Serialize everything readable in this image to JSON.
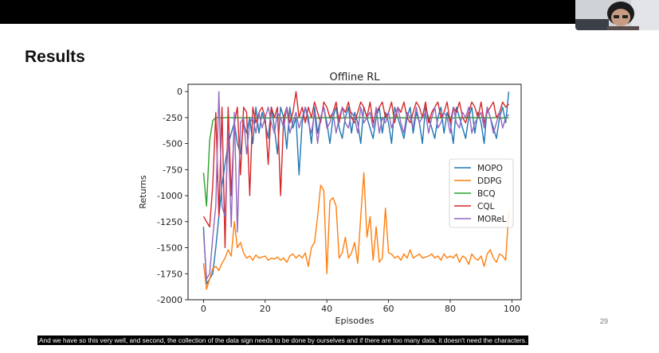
{
  "slide": {
    "title": "Results",
    "page_number": "29",
    "caption": "And we have so this very well, and second, the collection of the data sign needs to be done by ourselves and if there are too many data, it doesn't need the characters."
  },
  "chart_data": {
    "type": "line",
    "title": "Offline RL",
    "xlabel": "Episodes",
    "ylabel": "Returns",
    "xlim": [
      -5,
      103
    ],
    "ylim": [
      -2000,
      70
    ],
    "xticks": [
      0,
      20,
      40,
      60,
      80,
      100
    ],
    "yticks": [
      0,
      -250,
      -500,
      -750,
      -1000,
      -1250,
      -1500,
      -1750,
      -2000
    ],
    "grid": false,
    "legend_position": "center-right",
    "series": [
      {
        "name": "MOPO",
        "color": "#1f77b4",
        "x": [
          0,
          1,
          2,
          3,
          4,
          5,
          6,
          7,
          8,
          9,
          10,
          11,
          12,
          13,
          14,
          15,
          16,
          17,
          18,
          19,
          20,
          21,
          22,
          23,
          24,
          25,
          26,
          27,
          28,
          29,
          30,
          31,
          32,
          33,
          34,
          35,
          36,
          37,
          38,
          39,
          40,
          41,
          42,
          43,
          44,
          45,
          46,
          47,
          48,
          49,
          50,
          51,
          52,
          53,
          54,
          55,
          56,
          57,
          58,
          59,
          60,
          61,
          62,
          63,
          64,
          65,
          66,
          67,
          68,
          69,
          70,
          71,
          72,
          73,
          74,
          75,
          76,
          77,
          78,
          79,
          80,
          81,
          82,
          83,
          84,
          85,
          86,
          87,
          88,
          89,
          90,
          91,
          92,
          93,
          94,
          95,
          96,
          97,
          98,
          99
        ],
        "values": [
          -1300,
          -1850,
          -1800,
          -1750,
          -1500,
          -1200,
          -900,
          -700,
          -500,
          -400,
          -300,
          -500,
          -600,
          -300,
          -400,
          -250,
          -500,
          -150,
          -400,
          -200,
          -300,
          -450,
          -150,
          -350,
          -600,
          -150,
          -250,
          -550,
          -150,
          -350,
          -250,
          -800,
          -300,
          -150,
          -250,
          -500,
          -150,
          -400,
          -250,
          -150,
          -300,
          -500,
          -250,
          -150,
          -350,
          -450,
          -250,
          -150,
          -400,
          -200,
          -300,
          -500,
          -150,
          -250,
          -350,
          -450,
          -250,
          -150,
          -400,
          -200,
          -300,
          -500,
          -150,
          -250,
          -350,
          -450,
          -250,
          -150,
          -400,
          -200,
          -300,
          -500,
          -150,
          -250,
          -350,
          -450,
          -250,
          -150,
          -400,
          -200,
          -300,
          -500,
          -150,
          -250,
          -350,
          -450,
          -250,
          -150,
          -400,
          -200,
          -300,
          -500,
          -150,
          -250,
          -350,
          -450,
          -250,
          -150,
          -300,
          0
        ]
      },
      {
        "name": "DDPG",
        "color": "#ff7f0e",
        "x": [
          0,
          1,
          2,
          3,
          4,
          5,
          6,
          7,
          8,
          9,
          10,
          11,
          12,
          13,
          14,
          15,
          16,
          17,
          18,
          19,
          20,
          21,
          22,
          23,
          24,
          25,
          26,
          27,
          28,
          29,
          30,
          31,
          32,
          33,
          34,
          35,
          36,
          37,
          38,
          39,
          40,
          41,
          42,
          43,
          44,
          45,
          46,
          47,
          48,
          49,
          50,
          51,
          52,
          53,
          54,
          55,
          56,
          57,
          58,
          59,
          60,
          61,
          62,
          63,
          64,
          65,
          66,
          67,
          68,
          69,
          70,
          71,
          72,
          73,
          74,
          75,
          76,
          77,
          78,
          79,
          80,
          81,
          82,
          83,
          84,
          85,
          86,
          87,
          88,
          89,
          90,
          91,
          92,
          93,
          94,
          95,
          96,
          97,
          98,
          99
        ],
        "values": [
          -1650,
          -1900,
          -1800,
          -1700,
          -1680,
          -1720,
          -1650,
          -1600,
          -1520,
          -1580,
          -1250,
          -1500,
          -1450,
          -1550,
          -1600,
          -1580,
          -1620,
          -1570,
          -1600,
          -1590,
          -1580,
          -1620,
          -1600,
          -1610,
          -1590,
          -1620,
          -1600,
          -1640,
          -1580,
          -1560,
          -1600,
          -1570,
          -1600,
          -1550,
          -1680,
          -1500,
          -1450,
          -1200,
          -900,
          -950,
          -1750,
          -1050,
          -1020,
          -1100,
          -1600,
          -1550,
          -1400,
          -1600,
          -1550,
          -1450,
          -1650,
          -1200,
          -780,
          -1400,
          -1200,
          -1620,
          -1300,
          -1640,
          -1600,
          -1120,
          -1550,
          -1560,
          -1600,
          -1580,
          -1620,
          -1560,
          -1600,
          -1520,
          -1600,
          -1580,
          -1560,
          -1600,
          -1590,
          -1580,
          -1560,
          -1600,
          -1580,
          -1620,
          -1560,
          -1600,
          -1580,
          -1600,
          -1560,
          -1640,
          -1580,
          -1600,
          -1660,
          -1560,
          -1600,
          -1620,
          -1580,
          -1680,
          -1560,
          -1520,
          -1600,
          -1640,
          -1560,
          -1580,
          -1620,
          -1150
        ]
      },
      {
        "name": "BCQ",
        "color": "#2ca02c",
        "x": [
          0,
          1,
          2,
          3,
          4,
          5,
          6,
          7,
          8,
          9,
          10,
          11,
          12,
          13,
          14,
          15,
          16,
          17,
          18,
          19,
          20,
          21,
          22,
          23,
          24,
          25,
          26,
          27,
          28,
          29,
          30,
          31,
          32,
          33,
          34,
          35,
          36,
          37,
          38,
          39,
          40,
          41,
          42,
          43,
          44,
          45,
          46,
          47,
          48,
          49,
          50,
          51,
          52,
          53,
          54,
          55,
          56,
          57,
          58,
          59,
          60,
          61,
          62,
          63,
          64,
          65,
          66,
          67,
          68,
          69,
          70,
          71,
          72,
          73,
          74,
          75,
          76,
          77,
          78,
          79,
          80,
          81,
          82,
          83,
          84,
          85,
          86,
          87,
          88,
          89,
          90,
          91,
          92,
          93,
          94,
          95,
          96,
          97,
          98,
          99
        ],
        "values": [
          -780,
          -1100,
          -470,
          -280,
          -250,
          -250,
          -255,
          -250,
          -250,
          -250,
          -255,
          -250,
          -250,
          -255,
          -250,
          -250,
          -250,
          -255,
          -250,
          -250,
          -250,
          -255,
          -250,
          -250,
          -250,
          -255,
          -250,
          -250,
          -250,
          -255,
          -250,
          -250,
          -250,
          -255,
          -250,
          -250,
          -250,
          -255,
          -250,
          -250,
          -250,
          -255,
          -250,
          -250,
          -250,
          -255,
          -250,
          -250,
          -250,
          -255,
          -250,
          -250,
          -250,
          -255,
          -250,
          -250,
          -250,
          -255,
          -250,
          -250,
          -250,
          -255,
          -250,
          -250,
          -250,
          -255,
          -250,
          -250,
          -250,
          -255,
          -250,
          -250,
          -250,
          -255,
          -250,
          -250,
          -250,
          -255,
          -250,
          -250,
          -250,
          -255,
          -250,
          -250,
          -250,
          -255,
          -250,
          -250,
          -250,
          -255,
          -250,
          -250,
          -250,
          -255,
          -250,
          -250,
          -250,
          -255,
          -250,
          -250
        ]
      },
      {
        "name": "CQL",
        "color": "#d62728",
        "x": [
          0,
          1,
          2,
          3,
          4,
          5,
          6,
          7,
          8,
          9,
          10,
          11,
          12,
          13,
          14,
          15,
          16,
          17,
          18,
          19,
          20,
          21,
          22,
          23,
          24,
          25,
          26,
          27,
          28,
          29,
          30,
          31,
          32,
          33,
          34,
          35,
          36,
          37,
          38,
          39,
          40,
          41,
          42,
          43,
          44,
          45,
          46,
          47,
          48,
          49,
          50,
          51,
          52,
          53,
          54,
          55,
          56,
          57,
          58,
          59,
          60,
          61,
          62,
          63,
          64,
          65,
          66,
          67,
          68,
          69,
          70,
          71,
          72,
          73,
          74,
          75,
          76,
          77,
          78,
          79,
          80,
          81,
          82,
          83,
          84,
          85,
          86,
          87,
          88,
          89,
          90,
          91,
          92,
          93,
          94,
          95,
          96,
          97,
          98,
          99
        ],
        "values": [
          -1200,
          -1250,
          -1300,
          -900,
          -200,
          -1200,
          -150,
          -1500,
          -150,
          -1000,
          -300,
          -150,
          -800,
          -150,
          -200,
          -1000,
          -150,
          -300,
          -200,
          -150,
          -250,
          -700,
          -150,
          -250,
          -150,
          -1000,
          -250,
          -150,
          -300,
          -200,
          0,
          -250,
          -150,
          -300,
          -150,
          -250,
          -100,
          -200,
          -300,
          -100,
          -150,
          -250,
          -200,
          -100,
          -300,
          -150,
          -200,
          -100,
          -250,
          -300,
          -200,
          -100,
          -150,
          -250,
          -100,
          -300,
          -200,
          -150,
          -100,
          -250,
          -200,
          -100,
          -300,
          -150,
          -200,
          -100,
          -250,
          -300,
          -200,
          -100,
          -150,
          -250,
          -100,
          -300,
          -200,
          -150,
          -100,
          -250,
          -200,
          -100,
          -300,
          -150,
          -200,
          -100,
          -250,
          -300,
          -200,
          -100,
          -150,
          -250,
          -100,
          -300,
          -200,
          -150,
          -100,
          -250,
          -200,
          -100,
          -150,
          -120
        ]
      },
      {
        "name": "MOReL",
        "color": "#9467bd",
        "x": [
          0,
          1,
          2,
          3,
          4,
          5,
          6,
          7,
          8,
          9,
          10,
          11,
          12,
          13,
          14,
          15,
          16,
          17,
          18,
          19,
          20,
          21,
          22,
          23,
          24,
          25,
          26,
          27,
          28,
          29,
          30,
          31,
          32,
          33,
          34,
          35,
          36,
          37,
          38,
          39,
          40,
          41,
          42,
          43,
          44,
          45,
          46,
          47,
          48,
          49,
          50,
          51,
          52,
          53,
          54,
          55,
          56,
          57,
          58,
          59,
          60,
          61,
          62,
          63,
          64,
          65,
          66,
          67,
          68,
          69,
          70,
          71,
          72,
          73,
          74,
          75,
          76,
          77,
          78,
          79,
          80,
          81,
          82,
          83,
          84,
          85,
          86,
          87,
          88,
          89,
          90,
          91,
          92,
          93,
          94,
          95,
          96,
          97,
          98,
          99
        ],
        "values": [
          -1350,
          -1800,
          -1750,
          -1400,
          -1100,
          0,
          -1100,
          -1200,
          -400,
          -1300,
          -200,
          -1350,
          -300,
          -250,
          -600,
          -300,
          -250,
          -400,
          -200,
          -350,
          -250,
          -150,
          -300,
          -400,
          -200,
          -250,
          -350,
          -150,
          -400,
          -300,
          -200,
          -350,
          -250,
          -150,
          -300,
          -400,
          -200,
          -500,
          -250,
          -150,
          -350,
          -300,
          -200,
          -400,
          -250,
          -150,
          -300,
          -350,
          -200,
          -250,
          -400,
          -150,
          -300,
          -250,
          -200,
          -350,
          -150,
          -400,
          -250,
          -300,
          -200,
          -350,
          -250,
          -150,
          -300,
          -400,
          -200,
          -250,
          -350,
          -150,
          -300,
          -250,
          -200,
          -400,
          -250,
          -150,
          -350,
          -300,
          -200,
          -250,
          -400,
          -150,
          -300,
          -350,
          -200,
          -250,
          -150,
          -400,
          -300,
          -250,
          -200,
          -350,
          -150,
          -250,
          -400,
          -300,
          -200,
          -350,
          -250,
          -220
        ]
      }
    ]
  }
}
